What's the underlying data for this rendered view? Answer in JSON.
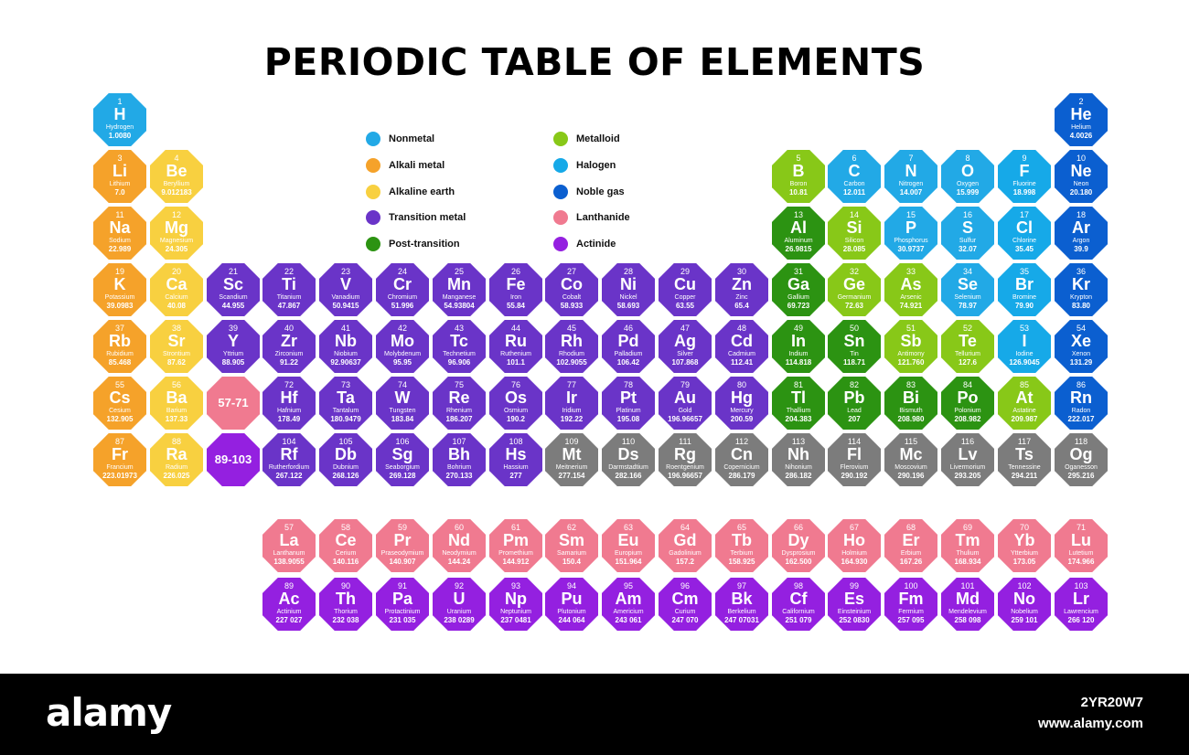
{
  "title": "PERIODIC TABLE OF ELEMENTS",
  "colors": {
    "nonmetal": "#22a9e6",
    "alkali": "#f5a22a",
    "alkaline": "#f8d040",
    "transition": "#6a34c8",
    "post": "#2c9312",
    "metalloid": "#88c818",
    "halogen": "#16a9e8",
    "noble": "#0b5fd0",
    "lanthanide": "#f07a90",
    "actinide": "#9420e0",
    "unknown": "#7c7c7c"
  },
  "legend": [
    {
      "label": "Nonmetal",
      "cat": "nonmetal"
    },
    {
      "label": "Alkali metal",
      "cat": "alkali"
    },
    {
      "label": "Alkaline earth",
      "cat": "alkaline"
    },
    {
      "label": "Transition metal",
      "cat": "transition"
    },
    {
      "label": "Post-transition",
      "cat": "post"
    },
    {
      "label": "Metalloid",
      "cat": "metalloid"
    },
    {
      "label": "Halogen",
      "cat": "halogen"
    },
    {
      "label": "Noble gas",
      "cat": "noble"
    },
    {
      "label": "Lanthanide",
      "cat": "lanthanide"
    },
    {
      "label": "Actinide",
      "cat": "actinide"
    }
  ],
  "placeholders": [
    {
      "label": "57-71",
      "cat": "lanthanide",
      "row": 6,
      "col": 3
    },
    {
      "label": "89-103",
      "cat": "actinide",
      "row": 7,
      "col": 3
    }
  ],
  "elements": [
    {
      "n": 1,
      "s": "H",
      "name": "Hydrogen",
      "m": "1.0080",
      "cat": "nonmetal",
      "row": 1,
      "col": 1
    },
    {
      "n": 2,
      "s": "He",
      "name": "Helium",
      "m": "4.0026",
      "cat": "noble",
      "row": 1,
      "col": 18
    },
    {
      "n": 3,
      "s": "Li",
      "name": "Lithium",
      "m": "7.0",
      "cat": "alkali",
      "row": 2,
      "col": 1
    },
    {
      "n": 4,
      "s": "Be",
      "name": "Beryllium",
      "m": "9.012183",
      "cat": "alkaline",
      "row": 2,
      "col": 2
    },
    {
      "n": 5,
      "s": "B",
      "name": "Boron",
      "m": "10.81",
      "cat": "metalloid",
      "row": 2,
      "col": 13
    },
    {
      "n": 6,
      "s": "C",
      "name": "Carbon",
      "m": "12.011",
      "cat": "nonmetal",
      "row": 2,
      "col": 14
    },
    {
      "n": 7,
      "s": "N",
      "name": "Nitrogen",
      "m": "14.007",
      "cat": "nonmetal",
      "row": 2,
      "col": 15
    },
    {
      "n": 8,
      "s": "O",
      "name": "Oxygen",
      "m": "15.999",
      "cat": "nonmetal",
      "row": 2,
      "col": 16
    },
    {
      "n": 9,
      "s": "F",
      "name": "Fluorine",
      "m": "18.998",
      "cat": "halogen",
      "row": 2,
      "col": 17
    },
    {
      "n": 10,
      "s": "Ne",
      "name": "Neon",
      "m": "20.180",
      "cat": "noble",
      "row": 2,
      "col": 18
    },
    {
      "n": 11,
      "s": "Na",
      "name": "Sodium",
      "m": "22.989",
      "cat": "alkali",
      "row": 3,
      "col": 1
    },
    {
      "n": 12,
      "s": "Mg",
      "name": "Magnesium",
      "m": "24.305",
      "cat": "alkaline",
      "row": 3,
      "col": 2
    },
    {
      "n": 13,
      "s": "Al",
      "name": "Aluminum",
      "m": "26.9815",
      "cat": "post",
      "row": 3,
      "col": 13
    },
    {
      "n": 14,
      "s": "Si",
      "name": "Silicon",
      "m": "28.085",
      "cat": "metalloid",
      "row": 3,
      "col": 14
    },
    {
      "n": 15,
      "s": "P",
      "name": "Phosphorus",
      "m": "30.9737",
      "cat": "nonmetal",
      "row": 3,
      "col": 15
    },
    {
      "n": 16,
      "s": "S",
      "name": "Sulfur",
      "m": "32.07",
      "cat": "nonmetal",
      "row": 3,
      "col": 16
    },
    {
      "n": 17,
      "s": "Cl",
      "name": "Chlorine",
      "m": "35.45",
      "cat": "halogen",
      "row": 3,
      "col": 17
    },
    {
      "n": 18,
      "s": "Ar",
      "name": "Argon",
      "m": "39.9",
      "cat": "noble",
      "row": 3,
      "col": 18
    },
    {
      "n": 19,
      "s": "K",
      "name": "Potassium",
      "m": "39.0983",
      "cat": "alkali",
      "row": 4,
      "col": 1
    },
    {
      "n": 20,
      "s": "Ca",
      "name": "Calcium",
      "m": "40.08",
      "cat": "alkaline",
      "row": 4,
      "col": 2
    },
    {
      "n": 21,
      "s": "Sc",
      "name": "Scandium",
      "m": "44.955",
      "cat": "transition",
      "row": 4,
      "col": 3
    },
    {
      "n": 22,
      "s": "Ti",
      "name": "Titanium",
      "m": "47.867",
      "cat": "transition",
      "row": 4,
      "col": 4
    },
    {
      "n": 23,
      "s": "V",
      "name": "Vanadium",
      "m": "50.9415",
      "cat": "transition",
      "row": 4,
      "col": 5
    },
    {
      "n": 24,
      "s": "Cr",
      "name": "Chromium",
      "m": "51.996",
      "cat": "transition",
      "row": 4,
      "col": 6
    },
    {
      "n": 25,
      "s": "Mn",
      "name": "Manganese",
      "m": "54.93804",
      "cat": "transition",
      "row": 4,
      "col": 7
    },
    {
      "n": 26,
      "s": "Fe",
      "name": "Iron",
      "m": "55.84",
      "cat": "transition",
      "row": 4,
      "col": 8
    },
    {
      "n": 27,
      "s": "Co",
      "name": "Cobalt",
      "m": "58.933",
      "cat": "transition",
      "row": 4,
      "col": 9
    },
    {
      "n": 28,
      "s": "Ni",
      "name": "Nickel",
      "m": "58.693",
      "cat": "transition",
      "row": 4,
      "col": 10
    },
    {
      "n": 29,
      "s": "Cu",
      "name": "Copper",
      "m": "63.55",
      "cat": "transition",
      "row": 4,
      "col": 11
    },
    {
      "n": 30,
      "s": "Zn",
      "name": "Zinc",
      "m": "65.4",
      "cat": "transition",
      "row": 4,
      "col": 12
    },
    {
      "n": 31,
      "s": "Ga",
      "name": "Gallium",
      "m": "69.723",
      "cat": "post",
      "row": 4,
      "col": 13
    },
    {
      "n": 32,
      "s": "Ge",
      "name": "Germanium",
      "m": "72.63",
      "cat": "metalloid",
      "row": 4,
      "col": 14
    },
    {
      "n": 33,
      "s": "As",
      "name": "Arsenic",
      "m": "74.921",
      "cat": "metalloid",
      "row": 4,
      "col": 15
    },
    {
      "n": 34,
      "s": "Se",
      "name": "Selenium",
      "m": "78.97",
      "cat": "nonmetal",
      "row": 4,
      "col": 16
    },
    {
      "n": 35,
      "s": "Br",
      "name": "Bromine",
      "m": "79.90",
      "cat": "halogen",
      "row": 4,
      "col": 17
    },
    {
      "n": 36,
      "s": "Kr",
      "name": "Krypton",
      "m": "83.80",
      "cat": "noble",
      "row": 4,
      "col": 18
    },
    {
      "n": 37,
      "s": "Rb",
      "name": "Rubidium",
      "m": "85.468",
      "cat": "alkali",
      "row": 5,
      "col": 1
    },
    {
      "n": 38,
      "s": "Sr",
      "name": "Strontium",
      "m": "87.62",
      "cat": "alkaline",
      "row": 5,
      "col": 2
    },
    {
      "n": 39,
      "s": "Y",
      "name": "Yttrium",
      "m": "88.905",
      "cat": "transition",
      "row": 5,
      "col": 3
    },
    {
      "n": 40,
      "s": "Zr",
      "name": "Zirconium",
      "m": "91.22",
      "cat": "transition",
      "row": 5,
      "col": 4
    },
    {
      "n": 41,
      "s": "Nb",
      "name": "Niobium",
      "m": "92.90637",
      "cat": "transition",
      "row": 5,
      "col": 5
    },
    {
      "n": 42,
      "s": "Mo",
      "name": "Molybdenum",
      "m": "95.95",
      "cat": "transition",
      "row": 5,
      "col": 6
    },
    {
      "n": 43,
      "s": "Tc",
      "name": "Technetium",
      "m": "96.906",
      "cat": "transition",
      "row": 5,
      "col": 7
    },
    {
      "n": 44,
      "s": "Ru",
      "name": "Ruthenium",
      "m": "101.1",
      "cat": "transition",
      "row": 5,
      "col": 8
    },
    {
      "n": 45,
      "s": "Rh",
      "name": "Rhodium",
      "m": "102.9055",
      "cat": "transition",
      "row": 5,
      "col": 9
    },
    {
      "n": 46,
      "s": "Pd",
      "name": "Palladium",
      "m": "106.42",
      "cat": "transition",
      "row": 5,
      "col": 10
    },
    {
      "n": 47,
      "s": "Ag",
      "name": "Silver",
      "m": "107.868",
      "cat": "transition",
      "row": 5,
      "col": 11
    },
    {
      "n": 48,
      "s": "Cd",
      "name": "Cadmium",
      "m": "112.41",
      "cat": "transition",
      "row": 5,
      "col": 12
    },
    {
      "n": 49,
      "s": "In",
      "name": "Indium",
      "m": "114.818",
      "cat": "post",
      "row": 5,
      "col": 13
    },
    {
      "n": 50,
      "s": "Sn",
      "name": "Tin",
      "m": "118.71",
      "cat": "post",
      "row": 5,
      "col": 14
    },
    {
      "n": 51,
      "s": "Sb",
      "name": "Antimony",
      "m": "121.760",
      "cat": "metalloid",
      "row": 5,
      "col": 15
    },
    {
      "n": 52,
      "s": "Te",
      "name": "Tellurium",
      "m": "127.6",
      "cat": "metalloid",
      "row": 5,
      "col": 16
    },
    {
      "n": 53,
      "s": "I",
      "name": "Iodine",
      "m": "126.9045",
      "cat": "halogen",
      "row": 5,
      "col": 17
    },
    {
      "n": 54,
      "s": "Xe",
      "name": "Xenon",
      "m": "131.29",
      "cat": "noble",
      "row": 5,
      "col": 18
    },
    {
      "n": 55,
      "s": "Cs",
      "name": "Cesium",
      "m": "132.905",
      "cat": "alkali",
      "row": 6,
      "col": 1
    },
    {
      "n": 56,
      "s": "Ba",
      "name": "Barium",
      "m": "137.33",
      "cat": "alkaline",
      "row": 6,
      "col": 2
    },
    {
      "n": 72,
      "s": "Hf",
      "name": "Hafnium",
      "m": "178.49",
      "cat": "transition",
      "row": 6,
      "col": 4
    },
    {
      "n": 73,
      "s": "Ta",
      "name": "Tantalum",
      "m": "180.9479",
      "cat": "transition",
      "row": 6,
      "col": 5
    },
    {
      "n": 74,
      "s": "W",
      "name": "Tungsten",
      "m": "183.84",
      "cat": "transition",
      "row": 6,
      "col": 6
    },
    {
      "n": 75,
      "s": "Re",
      "name": "Rhenium",
      "m": "186.207",
      "cat": "transition",
      "row": 6,
      "col": 7
    },
    {
      "n": 76,
      "s": "Os",
      "name": "Osmium",
      "m": "190.2",
      "cat": "transition",
      "row": 6,
      "col": 8
    },
    {
      "n": 77,
      "s": "Ir",
      "name": "Iridium",
      "m": "192.22",
      "cat": "transition",
      "row": 6,
      "col": 9
    },
    {
      "n": 78,
      "s": "Pt",
      "name": "Platinum",
      "m": "195.08",
      "cat": "transition",
      "row": 6,
      "col": 10
    },
    {
      "n": 79,
      "s": "Au",
      "name": "Gold",
      "m": "196.96657",
      "cat": "transition",
      "row": 6,
      "col": 11
    },
    {
      "n": 80,
      "s": "Hg",
      "name": "Mercury",
      "m": "200.59",
      "cat": "transition",
      "row": 6,
      "col": 12
    },
    {
      "n": 81,
      "s": "Tl",
      "name": "Thallium",
      "m": "204.383",
      "cat": "post",
      "row": 6,
      "col": 13
    },
    {
      "n": 82,
      "s": "Pb",
      "name": "Lead",
      "m": "207",
      "cat": "post",
      "row": 6,
      "col": 14
    },
    {
      "n": 83,
      "s": "Bi",
      "name": "Bismuth",
      "m": "208.980",
      "cat": "post",
      "row": 6,
      "col": 15
    },
    {
      "n": 84,
      "s": "Po",
      "name": "Polonium",
      "m": "208.982",
      "cat": "post",
      "row": 6,
      "col": 16
    },
    {
      "n": 85,
      "s": "At",
      "name": "Astatine",
      "m": "209.987",
      "cat": "metalloid",
      "row": 6,
      "col": 17
    },
    {
      "n": 86,
      "s": "Rn",
      "name": "Radon",
      "m": "222.017",
      "cat": "noble",
      "row": 6,
      "col": 18
    },
    {
      "n": 87,
      "s": "Fr",
      "name": "Francium",
      "m": "223.01973",
      "cat": "alkali",
      "row": 7,
      "col": 1
    },
    {
      "n": 88,
      "s": "Ra",
      "name": "Radium",
      "m": "226.025",
      "cat": "alkaline",
      "row": 7,
      "col": 2
    },
    {
      "n": 104,
      "s": "Rf",
      "name": "Rutherfordium",
      "m": "267.122",
      "cat": "transition",
      "row": 7,
      "col": 4
    },
    {
      "n": 105,
      "s": "Db",
      "name": "Dubnium",
      "m": "268.126",
      "cat": "transition",
      "row": 7,
      "col": 5
    },
    {
      "n": 106,
      "s": "Sg",
      "name": "Seaborgium",
      "m": "269.128",
      "cat": "transition",
      "row": 7,
      "col": 6
    },
    {
      "n": 107,
      "s": "Bh",
      "name": "Bohrium",
      "m": "270.133",
      "cat": "transition",
      "row": 7,
      "col": 7
    },
    {
      "n": 108,
      "s": "Hs",
      "name": "Hassium",
      "m": "277",
      "cat": "transition",
      "row": 7,
      "col": 8
    },
    {
      "n": 109,
      "s": "Mt",
      "name": "Meitnerium",
      "m": "277.154",
      "cat": "unknown",
      "row": 7,
      "col": 9
    },
    {
      "n": 110,
      "s": "Ds",
      "name": "Darmstadtium",
      "m": "282.166",
      "cat": "unknown",
      "row": 7,
      "col": 10
    },
    {
      "n": 111,
      "s": "Rg",
      "name": "Roentgenium",
      "m": "196.96657",
      "cat": "unknown",
      "row": 7,
      "col": 11
    },
    {
      "n": 112,
      "s": "Cn",
      "name": "Copernicium",
      "m": "286.179",
      "cat": "unknown",
      "row": 7,
      "col": 12
    },
    {
      "n": 113,
      "s": "Nh",
      "name": "Nihonium",
      "m": "286.182",
      "cat": "unknown",
      "row": 7,
      "col": 13
    },
    {
      "n": 114,
      "s": "Fl",
      "name": "Flerovium",
      "m": "290.192",
      "cat": "unknown",
      "row": 7,
      "col": 14
    },
    {
      "n": 115,
      "s": "Mc",
      "name": "Moscovium",
      "m": "290.196",
      "cat": "unknown",
      "row": 7,
      "col": 15
    },
    {
      "n": 116,
      "s": "Lv",
      "name": "Livermorium",
      "m": "293.205",
      "cat": "unknown",
      "row": 7,
      "col": 16
    },
    {
      "n": 117,
      "s": "Ts",
      "name": "Tennessine",
      "m": "294.211",
      "cat": "unknown",
      "row": 7,
      "col": 17
    },
    {
      "n": 118,
      "s": "Og",
      "name": "Oganesson",
      "m": "295.216",
      "cat": "unknown",
      "row": 7,
      "col": 18
    },
    {
      "n": 57,
      "s": "La",
      "name": "Lanthanum",
      "m": "138.9055",
      "cat": "lanthanide",
      "row": 9,
      "col": 4
    },
    {
      "n": 58,
      "s": "Ce",
      "name": "Cerium",
      "m": "140.116",
      "cat": "lanthanide",
      "row": 9,
      "col": 5
    },
    {
      "n": 59,
      "s": "Pr",
      "name": "Praseodymium",
      "m": "140.907",
      "cat": "lanthanide",
      "row": 9,
      "col": 6
    },
    {
      "n": 60,
      "s": "Nd",
      "name": "Neodymium",
      "m": "144.24",
      "cat": "lanthanide",
      "row": 9,
      "col": 7
    },
    {
      "n": 61,
      "s": "Pm",
      "name": "Promethium",
      "m": "144.912",
      "cat": "lanthanide",
      "row": 9,
      "col": 8
    },
    {
      "n": 62,
      "s": "Sm",
      "name": "Samarium",
      "m": "150.4",
      "cat": "lanthanide",
      "row": 9,
      "col": 9
    },
    {
      "n": 63,
      "s": "Eu",
      "name": "Europium",
      "m": "151.964",
      "cat": "lanthanide",
      "row": 9,
      "col": 10
    },
    {
      "n": 64,
      "s": "Gd",
      "name": "Gadolinium",
      "m": "157.2",
      "cat": "lanthanide",
      "row": 9,
      "col": 11
    },
    {
      "n": 65,
      "s": "Tb",
      "name": "Terbium",
      "m": "158.925",
      "cat": "lanthanide",
      "row": 9,
      "col": 12
    },
    {
      "n": 66,
      "s": "Dy",
      "name": "Dysprosium",
      "m": "162.500",
      "cat": "lanthanide",
      "row": 9,
      "col": 13
    },
    {
      "n": 67,
      "s": "Ho",
      "name": "Holmium",
      "m": "164.930",
      "cat": "lanthanide",
      "row": 9,
      "col": 14
    },
    {
      "n": 68,
      "s": "Er",
      "name": "Erbium",
      "m": "167.26",
      "cat": "lanthanide",
      "row": 9,
      "col": 15
    },
    {
      "n": 69,
      "s": "Tm",
      "name": "Thulium",
      "m": "168.934",
      "cat": "lanthanide",
      "row": 9,
      "col": 16
    },
    {
      "n": 70,
      "s": "Yb",
      "name": "Ytterbium",
      "m": "173.05",
      "cat": "lanthanide",
      "row": 9,
      "col": 17
    },
    {
      "n": 71,
      "s": "Lu",
      "name": "Lutetium",
      "m": "174.966",
      "cat": "lanthanide",
      "row": 9,
      "col": 18
    },
    {
      "n": 89,
      "s": "Ac",
      "name": "Actinium",
      "m": "227 027",
      "cat": "actinide",
      "row": 10,
      "col": 4
    },
    {
      "n": 90,
      "s": "Th",
      "name": "Thorium",
      "m": "232 038",
      "cat": "actinide",
      "row": 10,
      "col": 5
    },
    {
      "n": 91,
      "s": "Pa",
      "name": "Protactinium",
      "m": "231 035",
      "cat": "actinide",
      "row": 10,
      "col": 6
    },
    {
      "n": 92,
      "s": "U",
      "name": "Uranium",
      "m": "238 0289",
      "cat": "actinide",
      "row": 10,
      "col": 7
    },
    {
      "n": 93,
      "s": "Np",
      "name": "Neptunium",
      "m": "237 0481",
      "cat": "actinide",
      "row": 10,
      "col": 8
    },
    {
      "n": 94,
      "s": "Pu",
      "name": "Plutonium",
      "m": "244 064",
      "cat": "actinide",
      "row": 10,
      "col": 9
    },
    {
      "n": 95,
      "s": "Am",
      "name": "Americium",
      "m": "243 061",
      "cat": "actinide",
      "row": 10,
      "col": 10
    },
    {
      "n": 96,
      "s": "Cm",
      "name": "Curium",
      "m": "247 070",
      "cat": "actinide",
      "row": 10,
      "col": 11
    },
    {
      "n": 97,
      "s": "Bk",
      "name": "Berkelium",
      "m": "247 07031",
      "cat": "actinide",
      "row": 10,
      "col": 12
    },
    {
      "n": 98,
      "s": "Cf",
      "name": "Californium",
      "m": "251 079",
      "cat": "actinide",
      "row": 10,
      "col": 13
    },
    {
      "n": 99,
      "s": "Es",
      "name": "Einsteinium",
      "m": "252 0830",
      "cat": "actinide",
      "row": 10,
      "col": 14
    },
    {
      "n": 100,
      "s": "Fm",
      "name": "Fermium",
      "m": "257 095",
      "cat": "actinide",
      "row": 10,
      "col": 15
    },
    {
      "n": 101,
      "s": "Md",
      "name": "Mendelevium",
      "m": "258 098",
      "cat": "actinide",
      "row": 10,
      "col": 16
    },
    {
      "n": 102,
      "s": "No",
      "name": "Nobelium",
      "m": "259 101",
      "cat": "actinide",
      "row": 10,
      "col": 17
    },
    {
      "n": 103,
      "s": "Lr",
      "name": "Lawrencium",
      "m": "266 120",
      "cat": "actinide",
      "row": 10,
      "col": 18
    }
  ],
  "watermark": {
    "logo": "alamy",
    "image_id": "2YR20W7",
    "url": "www.alamy.com"
  }
}
